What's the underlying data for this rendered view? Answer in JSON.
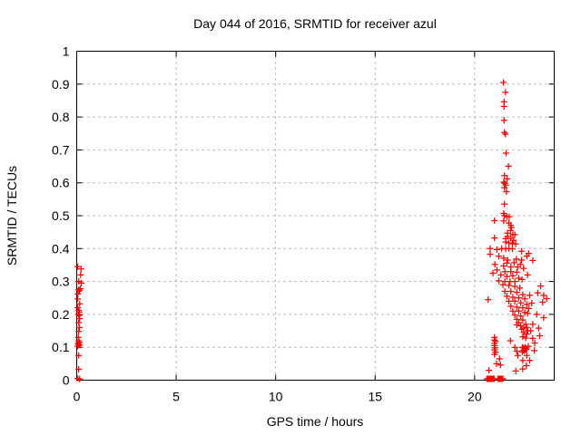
{
  "window": {
    "background": "#ffffff"
  },
  "colors": {
    "marker": "#ff0000",
    "grid": "#a0a0a0",
    "axis": "#000000",
    "text": "#000000",
    "background": "#ffffff"
  },
  "chart_data": {
    "type": "scatter",
    "title": "Day 044 of 2016, SRMTID for receiver azul",
    "xlabel": "GPS time / hours",
    "ylabel": "SRMTID / TECUs",
    "xlim": [
      0,
      24
    ],
    "ylim": [
      0,
      1
    ],
    "grid": true,
    "legend_position": "none",
    "x_ticks": {
      "labels": [
        "0",
        "5",
        "10",
        "15",
        "20"
      ],
      "values": [
        0,
        5,
        10,
        15,
        20
      ]
    },
    "y_ticks": {
      "labels": [
        "0",
        "0.1",
        "0.2",
        "0.3",
        "0.4",
        "0.5",
        "0.6",
        "0.7",
        "0.8",
        "0.9",
        "1"
      ],
      "values": [
        0,
        0.1,
        0.2,
        0.3,
        0.4,
        0.5,
        0.6,
        0.7,
        0.8,
        0.9,
        1
      ]
    },
    "marker": {
      "shape": "plus",
      "color": "#ff0000",
      "size": 7
    },
    "series": [
      {
        "name": "SRMTID",
        "points": [
          [
            0.05,
            0.345
          ],
          [
            0.22,
            0.338
          ],
          [
            0.2,
            0.32
          ],
          [
            0.1,
            0.3
          ],
          [
            0.23,
            0.295
          ],
          [
            0.18,
            0.278
          ],
          [
            0.1,
            0.275
          ],
          [
            0.14,
            0.272
          ],
          [
            0.06,
            0.262
          ],
          [
            0.05,
            0.247
          ],
          [
            0.15,
            0.232
          ],
          [
            0.05,
            0.22
          ],
          [
            0.1,
            0.212
          ],
          [
            0.13,
            0.207
          ],
          [
            0.08,
            0.2
          ],
          [
            0.12,
            0.197
          ],
          [
            0.15,
            0.187
          ],
          [
            0.1,
            0.175
          ],
          [
            0.14,
            0.16
          ],
          [
            0.1,
            0.148
          ],
          [
            0.08,
            0.13
          ],
          [
            0.1,
            0.12
          ],
          [
            0.13,
            0.115
          ],
          [
            0.07,
            0.112
          ],
          [
            0.1,
            0.108
          ],
          [
            0.15,
            0.106
          ],
          [
            0.05,
            0.103
          ],
          [
            0.1,
            0.075
          ],
          [
            0.1,
            0.033
          ],
          [
            0.06,
            0.005
          ],
          [
            0.15,
            0.003
          ],
          [
            21.45,
            0.905
          ],
          [
            21.55,
            0.875
          ],
          [
            21.48,
            0.846
          ],
          [
            21.48,
            0.832
          ],
          [
            21.48,
            0.79
          ],
          [
            21.5,
            0.753
          ],
          [
            21.55,
            0.748
          ],
          [
            21.58,
            0.69
          ],
          [
            21.7,
            0.65
          ],
          [
            21.5,
            0.622
          ],
          [
            21.63,
            0.612
          ],
          [
            21.46,
            0.602
          ],
          [
            21.52,
            0.598
          ],
          [
            21.57,
            0.593
          ],
          [
            21.5,
            0.585
          ],
          [
            21.6,
            0.573
          ],
          [
            21.5,
            0.535
          ],
          [
            21.46,
            0.507
          ],
          [
            21.5,
            0.5
          ],
          [
            21.62,
            0.497
          ],
          [
            21.74,
            0.497
          ],
          [
            21.0,
            0.485
          ],
          [
            21.46,
            0.484
          ],
          [
            21.72,
            0.478
          ],
          [
            21.82,
            0.47
          ],
          [
            21.85,
            0.464
          ],
          [
            21.8,
            0.455
          ],
          [
            21.65,
            0.447
          ],
          [
            21.92,
            0.443
          ],
          [
            22.02,
            0.442
          ],
          [
            21.66,
            0.437
          ],
          [
            21.0,
            0.432
          ],
          [
            21.56,
            0.43
          ],
          [
            21.82,
            0.431
          ],
          [
            21.96,
            0.425
          ],
          [
            21.56,
            0.42
          ],
          [
            21.72,
            0.417
          ],
          [
            21.9,
            0.415
          ],
          [
            22.06,
            0.414
          ],
          [
            20.78,
            0.4
          ],
          [
            21.12,
            0.397
          ],
          [
            21.36,
            0.4
          ],
          [
            21.56,
            0.399
          ],
          [
            21.72,
            0.4
          ],
          [
            21.9,
            0.399
          ],
          [
            22.36,
            0.392
          ],
          [
            20.78,
            0.383
          ],
          [
            21.22,
            0.377
          ],
          [
            21.46,
            0.371
          ],
          [
            21.66,
            0.365
          ],
          [
            22.1,
            0.368
          ],
          [
            22.36,
            0.365
          ],
          [
            22.72,
            0.385
          ],
          [
            22.62,
            0.377
          ],
          [
            22.92,
            0.364
          ],
          [
            21.02,
            0.352
          ],
          [
            21.46,
            0.347
          ],
          [
            21.82,
            0.344
          ],
          [
            22.16,
            0.344
          ],
          [
            22.46,
            0.34
          ],
          [
            22.3,
            0.352
          ],
          [
            21.62,
            0.356
          ],
          [
            21.98,
            0.357
          ],
          [
            21.12,
            0.335
          ],
          [
            21.52,
            0.33
          ],
          [
            21.82,
            0.33
          ],
          [
            22.12,
            0.328
          ],
          [
            22.66,
            0.32
          ],
          [
            20.92,
            0.325
          ],
          [
            21.32,
            0.32
          ],
          [
            21.62,
            0.315
          ],
          [
            21.92,
            0.317
          ],
          [
            22.22,
            0.31
          ],
          [
            22.38,
            0.306
          ],
          [
            21.22,
            0.302
          ],
          [
            21.52,
            0.3
          ],
          [
            21.78,
            0.3
          ],
          [
            22.02,
            0.3
          ],
          [
            23.32,
            0.286
          ],
          [
            21.42,
            0.29
          ],
          [
            21.72,
            0.288
          ],
          [
            22.02,
            0.285
          ],
          [
            22.27,
            0.28
          ],
          [
            23.17,
            0.265
          ],
          [
            23.47,
            0.258
          ],
          [
            21.52,
            0.27
          ],
          [
            21.82,
            0.27
          ],
          [
            22.12,
            0.267
          ],
          [
            22.42,
            0.26
          ],
          [
            22.77,
            0.258
          ],
          [
            21.62,
            0.255
          ],
          [
            21.92,
            0.252
          ],
          [
            22.22,
            0.25
          ],
          [
            23.62,
            0.248
          ],
          [
            22.52,
            0.247
          ],
          [
            23.42,
            0.237
          ],
          [
            20.68,
            0.245
          ],
          [
            21.72,
            0.24
          ],
          [
            22.02,
            0.24
          ],
          [
            22.32,
            0.235
          ],
          [
            22.62,
            0.23
          ],
          [
            22.87,
            0.234
          ],
          [
            21.82,
            0.225
          ],
          [
            22.12,
            0.222
          ],
          [
            22.42,
            0.22
          ],
          [
            22.72,
            0.218
          ],
          [
            21.92,
            0.21
          ],
          [
            22.22,
            0.21
          ],
          [
            22.52,
            0.206
          ],
          [
            22.66,
            0.203
          ],
          [
            23.12,
            0.2
          ],
          [
            22.02,
            0.198
          ],
          [
            22.32,
            0.195
          ],
          [
            23.47,
            0.19
          ],
          [
            22.12,
            0.185
          ],
          [
            22.42,
            0.183
          ],
          [
            22.92,
            0.17
          ],
          [
            22.22,
            0.175
          ],
          [
            22.57,
            0.17
          ],
          [
            23.22,
            0.158
          ],
          [
            22.32,
            0.165
          ],
          [
            22.62,
            0.16
          ],
          [
            22.37,
            0.155
          ],
          [
            22.67,
            0.15
          ],
          [
            22.82,
            0.15
          ],
          [
            22.47,
            0.158
          ],
          [
            22.12,
            0.168
          ],
          [
            22.47,
            0.145
          ],
          [
            22.62,
            0.14
          ],
          [
            23.27,
            0.135
          ],
          [
            21.0,
            0.13
          ],
          [
            21.0,
            0.122
          ],
          [
            21.05,
            0.118
          ],
          [
            22.92,
            0.127
          ],
          [
            21.8,
            0.12
          ],
          [
            23.02,
            0.113
          ],
          [
            22.42,
            0.132
          ],
          [
            22.57,
            0.128
          ],
          [
            21.0,
            0.112
          ],
          [
            21.0,
            0.105
          ],
          [
            21.03,
            0.098
          ],
          [
            21.0,
            0.092
          ],
          [
            21.05,
            0.085
          ],
          [
            21.0,
            0.078
          ],
          [
            22.4,
            0.1
          ],
          [
            22.46,
            0.098
          ],
          [
            22.52,
            0.096
          ],
          [
            22.57,
            0.093
          ],
          [
            22.44,
            0.091
          ],
          [
            22.5,
            0.089
          ],
          [
            22.4,
            0.086
          ],
          [
            22.55,
            0.1
          ],
          [
            22.6,
            0.094
          ],
          [
            23.0,
            0.09
          ],
          [
            22.7,
            0.103
          ],
          [
            22.02,
            0.1
          ],
          [
            22.12,
            0.088
          ],
          [
            22.17,
            0.075
          ],
          [
            22.62,
            0.075
          ],
          [
            21.25,
            0.065
          ],
          [
            22.42,
            0.06
          ],
          [
            22.77,
            0.06
          ],
          [
            22.6,
            0.044
          ],
          [
            20.72,
            0.03
          ],
          [
            22.07,
            0.028
          ],
          [
            22.42,
            0.034
          ],
          [
            21.3,
            0.046
          ],
          [
            21.1,
            0.05
          ],
          [
            20.62,
            0.004
          ],
          [
            20.66,
            0.004
          ],
          [
            20.7,
            0.004
          ],
          [
            20.74,
            0.004
          ],
          [
            20.78,
            0.004
          ],
          [
            20.82,
            0.004
          ],
          [
            20.86,
            0.004
          ],
          [
            20.9,
            0.004
          ],
          [
            20.94,
            0.004
          ],
          [
            20.98,
            0.004
          ],
          [
            21.18,
            0.004
          ],
          [
            21.22,
            0.004
          ],
          [
            21.26,
            0.004
          ],
          [
            21.3,
            0.004
          ],
          [
            21.34,
            0.004
          ],
          [
            21.38,
            0.004
          ],
          [
            21.42,
            0.004
          ]
        ]
      }
    ]
  }
}
